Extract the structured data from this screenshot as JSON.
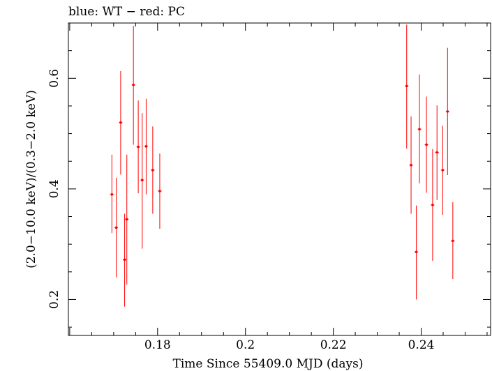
{
  "chart_data": {
    "type": "scatter",
    "title": "blue: WT − red: PC",
    "xlabel": "Time Since 55409.0 MJD (days)",
    "ylabel": "(2.0−10.0 keV)/(0.3−2.0 keV)",
    "xlim": [
      0.1597,
      0.2558
    ],
    "ylim": [
      0.135,
      0.7
    ],
    "x_ticks": [
      0.18,
      0.2,
      0.22,
      0.24
    ],
    "x_tick_labels": [
      "0.18",
      "0.2",
      "0.22",
      "0.24"
    ],
    "y_ticks": [
      0.2,
      0.4,
      0.6
    ],
    "y_tick_labels": [
      "0.2",
      "0.4",
      "0.6"
    ],
    "grid": false,
    "series": [
      {
        "color": "#ff0000",
        "points": [
          {
            "x": 0.1696,
            "y": 0.39,
            "xerr": 0.0004,
            "ylo": 0.32,
            "yhi": 0.462
          },
          {
            "x": 0.1706,
            "y": 0.33,
            "xerr": 0.0004,
            "ylo": 0.24,
            "yhi": 0.42
          },
          {
            "x": 0.1716,
            "y": 0.52,
            "xerr": 0.0004,
            "ylo": 0.426,
            "yhi": 0.613
          },
          {
            "x": 0.1725,
            "y": 0.272,
            "xerr": 0.0004,
            "ylo": 0.187,
            "yhi": 0.355
          },
          {
            "x": 0.173,
            "y": 0.345,
            "xerr": 0.0004,
            "ylo": 0.227,
            "yhi": 0.462
          },
          {
            "x": 0.1745,
            "y": 0.588,
            "xerr": 0.0004,
            "ylo": 0.48,
            "yhi": 0.695
          },
          {
            "x": 0.1756,
            "y": 0.476,
            "xerr": 0.0004,
            "ylo": 0.392,
            "yhi": 0.56
          },
          {
            "x": 0.1765,
            "y": 0.416,
            "xerr": 0.0004,
            "ylo": 0.292,
            "yhi": 0.537
          },
          {
            "x": 0.1774,
            "y": 0.477,
            "xerr": 0.0004,
            "ylo": 0.39,
            "yhi": 0.563
          },
          {
            "x": 0.1789,
            "y": 0.434,
            "xerr": 0.0004,
            "ylo": 0.355,
            "yhi": 0.513
          },
          {
            "x": 0.1805,
            "y": 0.396,
            "xerr": 0.0004,
            "ylo": 0.328,
            "yhi": 0.464
          },
          {
            "x": 0.2367,
            "y": 0.586,
            "xerr": 0.0004,
            "ylo": 0.473,
            "yhi": 0.697
          },
          {
            "x": 0.2377,
            "y": 0.443,
            "xerr": 0.0004,
            "ylo": 0.355,
            "yhi": 0.531
          },
          {
            "x": 0.2389,
            "y": 0.286,
            "xerr": 0.0004,
            "ylo": 0.2,
            "yhi": 0.37
          },
          {
            "x": 0.2396,
            "y": 0.508,
            "xerr": 0.0004,
            "ylo": 0.41,
            "yhi": 0.607
          },
          {
            "x": 0.2412,
            "y": 0.48,
            "xerr": 0.0004,
            "ylo": 0.393,
            "yhi": 0.567
          },
          {
            "x": 0.2426,
            "y": 0.371,
            "xerr": 0.0004,
            "ylo": 0.27,
            "yhi": 0.472
          },
          {
            "x": 0.2436,
            "y": 0.466,
            "xerr": 0.0004,
            "ylo": 0.38,
            "yhi": 0.551
          },
          {
            "x": 0.2449,
            "y": 0.434,
            "xerr": 0.0004,
            "ylo": 0.353,
            "yhi": 0.514
          },
          {
            "x": 0.246,
            "y": 0.54,
            "xerr": 0.0004,
            "ylo": 0.425,
            "yhi": 0.655
          },
          {
            "x": 0.2472,
            "y": 0.306,
            "xerr": 0.0004,
            "ylo": 0.237,
            "yhi": 0.376
          }
        ]
      }
    ]
  }
}
